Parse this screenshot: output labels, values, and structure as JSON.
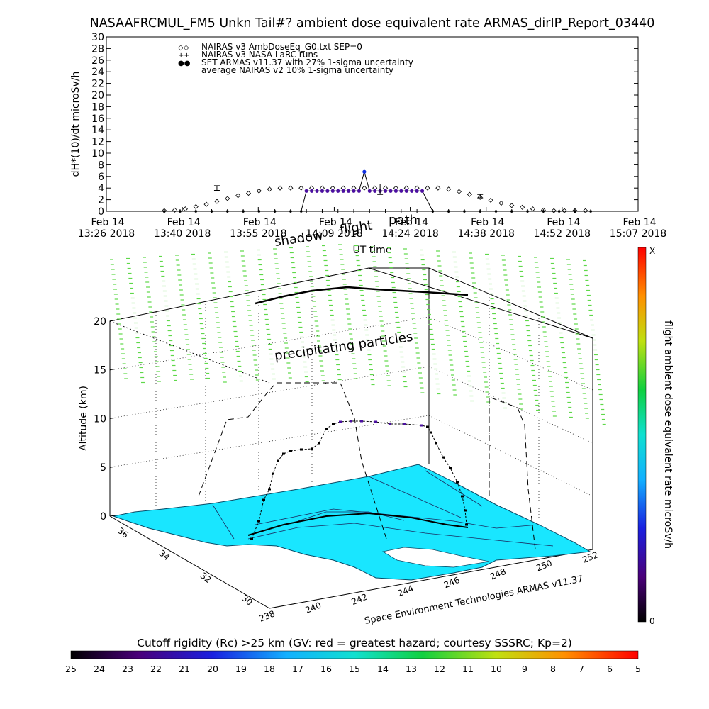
{
  "title": "NASAAFRCMUL_FM5 Unkn Tail#? ambient dose equivalent rate ARMAS_dirIP_Report_03440",
  "top_chart": {
    "ylabel": "dH*(10)/dt microSv/h",
    "xlabel": "UT time",
    "y_ticks": [
      "0",
      "2",
      "4",
      "6",
      "8",
      "10",
      "12",
      "14",
      "16",
      "18",
      "20",
      "22",
      "24",
      "26",
      "28",
      "30"
    ],
    "x_ticks": [
      {
        "line1": "Feb 14",
        "line2": "13:26 2018"
      },
      {
        "line1": "Feb 14",
        "line2": "13:40 2018"
      },
      {
        "line1": "Feb 14",
        "line2": "13:55 2018"
      },
      {
        "line1": "Feb 14",
        "line2": "14:09 2018"
      },
      {
        "line1": "Feb 14",
        "line2": "14:24 2018"
      },
      {
        "line1": "Feb 14",
        "line2": "14:38 2018"
      },
      {
        "line1": "Feb 14",
        "line2": "14:52 2018"
      },
      {
        "line1": "Feb 14",
        "line2": "15:07 2018"
      }
    ],
    "legend": [
      {
        "symbol": "◇◇",
        "label": "NAIRAS v3 AmbDoseEq_G0.txt SEP=0"
      },
      {
        "symbol": "++",
        "label": "NAIRAS v3 NASA LaRC runs"
      },
      {
        "symbol": "●●",
        "label": "SET ARMAS v11.37 with 27% 1-sigma uncertainty"
      },
      {
        "symbol": "",
        "label": "average NAIRAS v2 10% 1-sigma uncertainty"
      }
    ],
    "overlay_labels": [
      "path",
      "flight",
      "shadow"
    ]
  },
  "chart_data": [
    {
      "type": "scatter",
      "title": "NASAAFRCMUL_FM5 Unkn Tail#? ambient dose equivalent rate ARMAS_dirIP_Report_03440",
      "xlabel": "UT time",
      "ylabel": "dH*(10)/dt microSv/h",
      "x_unit": "minutes after 13:26",
      "xlim": [
        0,
        101
      ],
      "ylim": [
        0,
        30
      ],
      "series": [
        {
          "name": "NAIRAS v3 AmbDoseEq_G0.txt SEP=0",
          "marker": "diamond",
          "x": [
            11,
            13,
            15,
            17,
            19,
            21,
            23,
            25,
            27,
            29,
            31,
            33,
            35,
            37,
            39,
            41,
            43,
            45,
            47,
            49,
            51,
            53,
            55,
            57,
            59,
            61,
            63,
            65,
            67,
            69,
            71,
            73,
            75,
            77,
            79,
            81,
            83,
            85,
            87,
            89,
            91
          ],
          "y": [
            0.1,
            0.2,
            0.4,
            0.8,
            1.2,
            1.7,
            2.2,
            2.7,
            3.1,
            3.5,
            3.8,
            4.0,
            4.0,
            4.0,
            4.0,
            4.0,
            4.0,
            4.0,
            4.0,
            4.0,
            4.0,
            4.0,
            4.0,
            4.0,
            4.0,
            4.0,
            4.0,
            3.8,
            3.4,
            2.9,
            2.4,
            1.9,
            1.4,
            1.0,
            0.7,
            0.4,
            0.2,
            0.1,
            0.1,
            0.1,
            0.1
          ]
        },
        {
          "name": "NAIRAS v3 NASA LaRC runs",
          "marker": "plus",
          "x": [
            11,
            14,
            17,
            20,
            23,
            26,
            29,
            32,
            35,
            38,
            41,
            44,
            47,
            50,
            53,
            56,
            59,
            62,
            65,
            68,
            71,
            74,
            77,
            80,
            83,
            86,
            89,
            92
          ],
          "y": [
            0,
            0,
            0,
            0,
            0,
            0,
            0,
            0,
            0,
            0,
            0,
            0,
            0,
            0,
            0,
            0,
            0,
            0,
            0,
            0,
            0,
            0,
            0,
            0,
            0,
            0,
            0,
            0
          ]
        },
        {
          "name": "SET ARMAS v11.37 with 27% 1-sigma uncertainty",
          "marker": "filled-circle",
          "x": [
            11,
            14,
            17,
            20,
            23,
            26,
            29,
            32,
            35,
            37,
            38,
            39,
            40,
            41,
            42,
            43,
            44,
            45,
            46,
            47,
            48,
            49,
            50,
            51,
            52,
            53,
            54,
            55,
            56,
            57,
            58,
            59,
            60,
            62,
            65,
            68,
            71,
            74,
            77,
            80,
            83,
            86,
            89,
            92
          ],
          "y": [
            0,
            0,
            0,
            0,
            0,
            0,
            0,
            0,
            0,
            0,
            3.5,
            3.5,
            3.5,
            3.5,
            3.5,
            3.5,
            3.5,
            3.5,
            3.5,
            3.5,
            3.5,
            6.8,
            3.5,
            3.5,
            3.5,
            3.5,
            3.5,
            3.5,
            3.5,
            3.5,
            3.5,
            3.5,
            3.5,
            0,
            0,
            0,
            0,
            0,
            0,
            0,
            0,
            0,
            0,
            0
          ]
        },
        {
          "name": "average NAIRAS v2 10% 1-sigma uncertainty",
          "marker": "errorbar",
          "x": [
            21,
            52,
            71
          ],
          "y": [
            4.0,
            3.8,
            2.6
          ],
          "yerr": [
            0.4,
            0.9,
            0.3
          ]
        }
      ]
    },
    {
      "type": "3d-surface",
      "zlabel": "Altitude (km)",
      "z_ticks": [
        "0",
        "5",
        "10",
        "15",
        "20"
      ],
      "x_ticks": [
        "238",
        "240",
        "242",
        "244",
        "246",
        "248",
        "250",
        "252"
      ],
      "y_ticks": [
        "30",
        "32",
        "34",
        "36"
      ],
      "annotation": "precipitating particles",
      "credit": "Space Environment Technologies ARMAS v11.37"
    }
  ],
  "right_colorbar": {
    "label": "flight ambient dose equivalent rate microSv/h",
    "top_label": "X",
    "bottom_label": "0"
  },
  "bottom_colorbar": {
    "title": "Cutoff rigidity (Rc) >25 km (GV: red = greatest hazard; courtesy SSSRC; Kp=2)",
    "ticks": [
      "25",
      "24",
      "23",
      "22",
      "21",
      "20",
      "19",
      "18",
      "17",
      "16",
      "15",
      "14",
      "13",
      "12",
      "11",
      "10",
      "9",
      "8",
      "7",
      "6",
      "5"
    ]
  },
  "colors": {
    "surface": "#19e6ff",
    "particles": "#5fd84a",
    "armas": "#4b0fa0",
    "armas_peak": "#1030e0"
  }
}
